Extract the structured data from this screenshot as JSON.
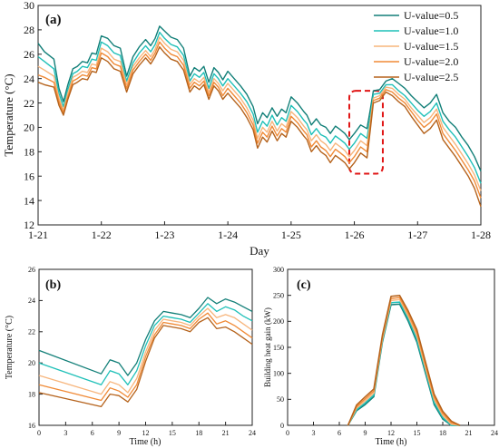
{
  "colors": [
    "#127f78",
    "#1fc0b8",
    "#f7b57c",
    "#f08a36",
    "#b5621b"
  ],
  "chart_data": [
    {
      "type": "line",
      "panel_label": "(a)",
      "xlabel": "Day",
      "ylabel": "Temperature (°C)",
      "xlim": [
        0,
        7
      ],
      "ylim": [
        12,
        30
      ],
      "x_ticks": [
        0,
        1,
        2,
        3,
        4,
        5,
        6,
        7
      ],
      "x_tick_labels": [
        "1-21",
        "1-22",
        "1-23",
        "1-24",
        "1-25",
        "1-26",
        "1-27",
        "1-28"
      ],
      "y_ticks": [
        12,
        14,
        16,
        18,
        20,
        22,
        24,
        26,
        28,
        30
      ],
      "legend_position": "top-right",
      "annotation": "red dashed box highlighting 1-25 to 1-26",
      "highlight_box": {
        "x": [
          4.92,
          5.45
        ],
        "y": [
          16.2,
          23.0
        ]
      },
      "x": [
        0,
        0.1,
        0.25,
        0.33,
        0.4,
        0.47,
        0.55,
        0.62,
        0.7,
        0.78,
        0.85,
        0.92,
        1.0,
        1.1,
        1.2,
        1.3,
        1.4,
        1.5,
        1.6,
        1.7,
        1.78,
        1.85,
        1.92,
        2.0,
        2.1,
        2.2,
        2.3,
        2.4,
        2.47,
        2.55,
        2.62,
        2.7,
        2.78,
        2.85,
        2.92,
        3.0,
        3.1,
        3.2,
        3.3,
        3.4,
        3.47,
        3.55,
        3.62,
        3.7,
        3.78,
        3.85,
        3.92,
        4.0,
        4.1,
        4.2,
        4.25,
        4.32,
        4.4,
        4.47,
        4.55,
        4.62,
        4.7,
        4.78,
        4.85,
        4.92,
        5.0,
        5.1,
        5.2,
        5.25,
        5.3,
        5.4,
        5.5,
        5.6,
        5.7,
        5.8,
        5.9,
        6.0,
        6.1,
        6.2,
        6.3,
        6.4,
        6.5,
        6.6,
        6.7,
        6.8,
        6.9,
        7.0
      ],
      "series": [
        {
          "name": "U-value=0.5",
          "values": [
            26.9,
            26.2,
            25.6,
            23.2,
            22.1,
            23.5,
            24.8,
            25.0,
            25.4,
            25.3,
            26.1,
            26.0,
            27.5,
            27.3,
            26.7,
            26.5,
            24.2,
            25.8,
            26.6,
            27.2,
            26.7,
            27.3,
            28.3,
            27.9,
            27.4,
            27.2,
            26.5,
            24.2,
            24.9,
            24.6,
            25.0,
            23.7,
            24.9,
            24.5,
            23.9,
            24.6,
            24.0,
            23.4,
            22.7,
            21.7,
            20.3,
            21.2,
            20.8,
            21.6,
            20.9,
            21.5,
            21.2,
            22.5,
            22.0,
            21.3,
            21.0,
            20.2,
            20.7,
            20.2,
            20.0,
            19.5,
            20.1,
            19.8,
            19.5,
            19.0,
            19.5,
            20.2,
            19.9,
            21.4,
            23.0,
            23.1,
            23.8,
            24.0,
            23.6,
            23.2,
            22.6,
            22.1,
            21.6,
            22.0,
            22.7,
            21.2,
            20.5,
            20.0,
            19.2,
            18.5,
            17.6,
            16.4
          ]
        },
        {
          "name": "U-value=1.0",
          "values": [
            25.8,
            25.4,
            24.8,
            22.8,
            21.7,
            23.1,
            24.4,
            24.6,
            25.0,
            24.9,
            25.6,
            25.5,
            27.0,
            26.7,
            26.1,
            25.9,
            23.8,
            25.3,
            26.1,
            26.7,
            26.2,
            26.8,
            27.8,
            27.3,
            26.8,
            26.6,
            25.9,
            23.8,
            24.4,
            24.1,
            24.5,
            23.2,
            24.4,
            24.0,
            23.4,
            24.0,
            23.4,
            22.8,
            22.1,
            21.1,
            19.6,
            20.5,
            20.1,
            21.0,
            20.2,
            20.8,
            20.5,
            21.8,
            21.3,
            20.6,
            20.3,
            19.4,
            19.9,
            19.4,
            19.2,
            18.7,
            19.3,
            19.0,
            18.7,
            18.2,
            18.7,
            19.5,
            19.1,
            20.8,
            22.7,
            22.8,
            23.5,
            23.5,
            23.0,
            22.6,
            22.0,
            21.4,
            20.9,
            21.3,
            22.0,
            20.5,
            19.8,
            19.2,
            18.4,
            17.6,
            16.7,
            15.4
          ]
        },
        {
          "name": "U-value=1.5",
          "values": [
            25.0,
            24.7,
            24.2,
            22.4,
            21.4,
            22.8,
            24.1,
            24.3,
            24.6,
            24.5,
            25.2,
            25.1,
            26.5,
            26.2,
            25.6,
            25.4,
            23.5,
            25.0,
            25.7,
            26.3,
            25.8,
            26.4,
            27.4,
            26.9,
            26.4,
            26.2,
            25.5,
            23.5,
            24.0,
            23.7,
            24.1,
            22.9,
            24.0,
            23.6,
            23.0,
            23.6,
            23.0,
            22.4,
            21.6,
            20.6,
            19.1,
            20.0,
            19.6,
            20.5,
            19.7,
            20.3,
            20.0,
            21.3,
            20.8,
            20.1,
            19.8,
            18.9,
            19.4,
            18.9,
            18.6,
            18.1,
            18.7,
            18.4,
            18.1,
            17.6,
            18.1,
            18.9,
            18.5,
            20.4,
            22.4,
            22.6,
            23.3,
            23.2,
            22.7,
            22.3,
            21.6,
            21.0,
            20.4,
            20.8,
            21.5,
            20.0,
            19.3,
            18.6,
            17.8,
            17.0,
            16.1,
            14.8
          ]
        },
        {
          "name": "U-value=2.0",
          "values": [
            24.3,
            24.1,
            23.7,
            22.1,
            21.2,
            22.5,
            23.8,
            24.0,
            24.3,
            24.2,
            24.9,
            24.8,
            26.1,
            25.8,
            25.2,
            25.0,
            23.2,
            24.7,
            25.4,
            26.0,
            25.5,
            26.1,
            27.0,
            26.5,
            26.0,
            25.8,
            25.1,
            23.2,
            23.7,
            23.4,
            23.8,
            22.6,
            23.7,
            23.3,
            22.6,
            23.2,
            22.6,
            22.0,
            21.2,
            20.2,
            18.7,
            19.6,
            19.2,
            20.1,
            19.3,
            19.9,
            19.6,
            20.9,
            20.4,
            19.7,
            19.4,
            18.4,
            18.9,
            18.4,
            18.1,
            17.6,
            18.2,
            17.9,
            17.6,
            17.1,
            17.6,
            18.4,
            18.0,
            20.0,
            22.2,
            22.4,
            23.1,
            22.9,
            22.4,
            22.0,
            21.3,
            20.6,
            20.0,
            20.4,
            21.1,
            19.5,
            18.8,
            18.1,
            17.3,
            16.5,
            15.6,
            14.2
          ]
        },
        {
          "name": "U-value=2.5",
          "values": [
            23.7,
            23.5,
            23.3,
            21.8,
            21.0,
            22.3,
            23.5,
            23.7,
            24.0,
            23.9,
            24.6,
            24.5,
            25.7,
            25.4,
            24.8,
            24.6,
            22.9,
            24.4,
            25.1,
            25.7,
            25.2,
            25.8,
            26.6,
            26.1,
            25.6,
            25.4,
            24.7,
            22.9,
            23.4,
            23.1,
            23.5,
            22.3,
            23.4,
            23.0,
            22.3,
            22.8,
            22.2,
            21.6,
            20.8,
            19.8,
            18.3,
            19.2,
            18.8,
            19.7,
            18.9,
            19.5,
            19.2,
            20.5,
            20.0,
            19.3,
            19.0,
            18.0,
            18.5,
            18.0,
            17.7,
            17.1,
            17.7,
            17.4,
            17.1,
            16.6,
            17.1,
            17.9,
            17.5,
            19.7,
            22.0,
            22.2,
            22.9,
            22.6,
            22.1,
            21.7,
            20.9,
            20.2,
            19.5,
            19.9,
            20.6,
            19.0,
            18.3,
            17.6,
            16.8,
            16.0,
            15.0,
            13.5
          ]
        }
      ]
    },
    {
      "type": "line",
      "panel_label": "(b)",
      "xlabel": "Time (h)",
      "ylabel": "Temperature (°C)",
      "xlim": [
        0,
        24
      ],
      "ylim": [
        16,
        26
      ],
      "x_ticks": [
        0,
        3,
        6,
        9,
        12,
        15,
        18,
        21,
        24
      ],
      "y_ticks": [
        16,
        18,
        20,
        22,
        24,
        26
      ],
      "x": [
        0,
        7,
        8,
        9,
        10,
        11,
        12,
        13,
        14,
        15,
        16,
        17,
        18,
        19,
        20,
        21,
        22,
        23,
        24
      ],
      "series": [
        {
          "name": "U-value=0.5",
          "values": [
            20.8,
            19.3,
            20.2,
            20.0,
            19.2,
            20.0,
            21.5,
            22.7,
            23.3,
            23.2,
            23.1,
            22.9,
            23.5,
            24.2,
            23.8,
            24.1,
            23.9,
            23.6,
            23.3
          ]
        },
        {
          "name": "U-value=1.0",
          "values": [
            20.0,
            18.6,
            19.5,
            19.3,
            18.6,
            19.5,
            21.1,
            22.4,
            23.0,
            22.9,
            22.8,
            22.6,
            23.2,
            23.8,
            23.3,
            23.6,
            23.4,
            23.0,
            22.7
          ]
        },
        {
          "name": "U-value=1.5",
          "values": [
            19.2,
            18.0,
            18.8,
            18.6,
            18.1,
            19.0,
            20.7,
            22.1,
            22.8,
            22.7,
            22.6,
            22.4,
            23.0,
            23.5,
            22.9,
            23.1,
            22.9,
            22.5,
            22.1
          ]
        },
        {
          "name": "U-value=2.0",
          "values": [
            18.6,
            17.6,
            18.4,
            18.2,
            17.8,
            18.6,
            20.4,
            21.8,
            22.6,
            22.5,
            22.4,
            22.2,
            22.8,
            23.2,
            22.5,
            22.7,
            22.4,
            22.0,
            21.6
          ]
        },
        {
          "name": "U-value=2.5",
          "values": [
            18.1,
            17.2,
            18.0,
            17.9,
            17.5,
            18.3,
            20.1,
            21.6,
            22.4,
            22.3,
            22.2,
            22.0,
            22.6,
            22.9,
            22.2,
            22.3,
            22.0,
            21.6,
            21.2
          ]
        }
      ]
    },
    {
      "type": "line",
      "panel_label": "(c)",
      "xlabel": "Time (h)",
      "ylabel": "Building heat gain (kW)",
      "xlim": [
        0,
        24
      ],
      "ylim": [
        0,
        300
      ],
      "x_ticks": [
        0,
        3,
        6,
        9,
        12,
        15,
        18,
        21,
        24
      ],
      "y_ticks": [
        0,
        50,
        100,
        150,
        200,
        250,
        300
      ],
      "x": [
        7,
        8,
        9,
        10,
        11,
        12,
        13,
        14,
        15,
        16,
        17,
        18,
        19,
        20
      ],
      "series": [
        {
          "name": "U-value=0.5",
          "values": [
            0,
            28,
            40,
            55,
            160,
            232,
            233,
            200,
            160,
            100,
            40,
            12,
            0,
            0
          ]
        },
        {
          "name": "U-value=1.0",
          "values": [
            0,
            30,
            43,
            58,
            163,
            236,
            237,
            205,
            165,
            105,
            44,
            15,
            0,
            0
          ]
        },
        {
          "name": "U-value=1.5",
          "values": [
            0,
            33,
            47,
            62,
            166,
            240,
            242,
            210,
            172,
            110,
            50,
            19,
            2,
            0
          ]
        },
        {
          "name": "U-value=2.0",
          "values": [
            0,
            36,
            51,
            66,
            170,
            244,
            246,
            215,
            178,
            116,
            55,
            23,
            5,
            0
          ]
        },
        {
          "name": "U-value=2.5",
          "values": [
            0,
            39,
            55,
            70,
            174,
            248,
            250,
            220,
            184,
            122,
            60,
            27,
            8,
            0
          ]
        }
      ]
    }
  ]
}
